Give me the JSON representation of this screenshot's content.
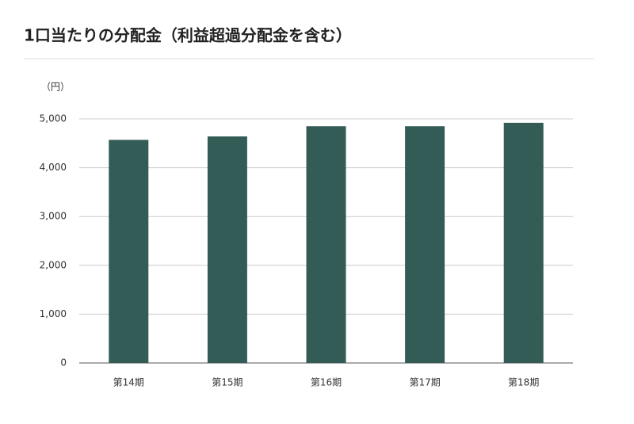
{
  "chart_data": {
    "type": "bar",
    "title": "1口当たりの分配金（利益超過分配金を含む）",
    "y_label": "（円）",
    "categories": [
      "第14期",
      "第15期",
      "第16期",
      "第17期",
      "第18期"
    ],
    "values": [
      4570,
      4640,
      4850,
      4850,
      4920
    ],
    "color": "#335c57",
    "ylim": [
      0,
      5000
    ],
    "yticks": [
      0,
      {
        "value": 1000,
        "label": "1,000"
      },
      {
        "value": 2000,
        "label": "2,000"
      },
      {
        "value": 3000,
        "label": "3,000"
      },
      {
        "value": 4000,
        "label": "4,000"
      },
      {
        "value": 5000,
        "label": "5,000"
      }
    ],
    "grid": true
  }
}
